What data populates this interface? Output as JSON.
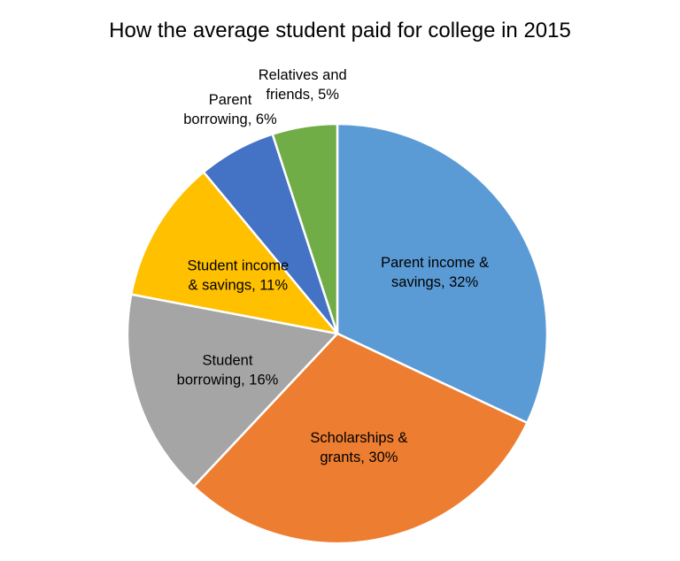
{
  "chart_data": {
    "type": "pie",
    "title": "How the average student paid for college in 2015",
    "unit": "%",
    "start": "12 o'clock",
    "direction": "clockwise",
    "slices": [
      {
        "name": "Parent income & savings",
        "value": 32,
        "color": "#5B9BD5",
        "label_lines": [
          "Parent income &",
          "savings, 32%"
        ],
        "label_position": "inside"
      },
      {
        "name": "Scholarships & grants",
        "value": 30,
        "color": "#ED7D31",
        "label_lines": [
          "Scholarships &",
          "grants, 30%"
        ],
        "label_position": "inside"
      },
      {
        "name": "Student borrowing",
        "value": 16,
        "color": "#A5A5A5",
        "label_lines": [
          "Student",
          "borrowing, 16%"
        ],
        "label_position": "inside"
      },
      {
        "name": "Student income & savings",
        "value": 11,
        "color": "#FFC000",
        "label_lines": [
          "Student income",
          "& savings, 11%"
        ],
        "label_position": "inside"
      },
      {
        "name": "Parent borrowing",
        "value": 6,
        "color": "#4472C4",
        "label_lines": [
          "Parent",
          "borrowing, 6%"
        ],
        "label_position": "outside"
      },
      {
        "name": "Relatives and friends",
        "value": 5,
        "color": "#70AD47",
        "label_lines": [
          "Relatives and",
          "friends, 5%"
        ],
        "label_position": "outside"
      }
    ]
  }
}
